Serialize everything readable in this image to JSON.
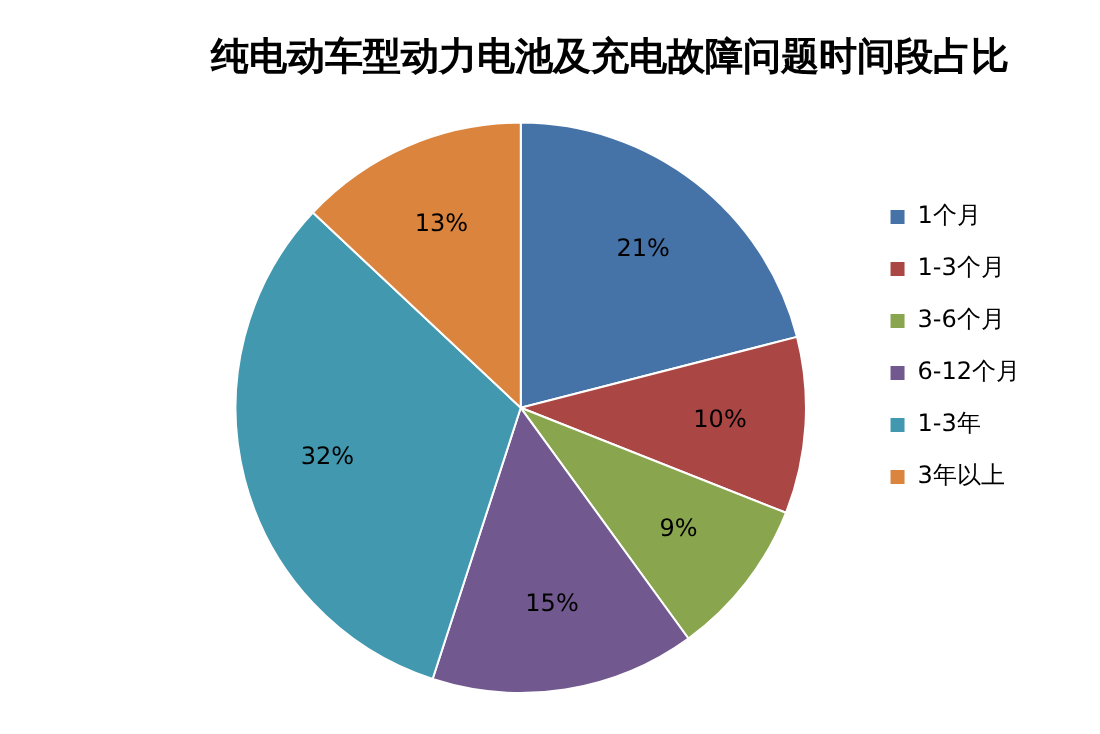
{
  "chart_data": {
    "type": "pie",
    "title": "纯电动车型动力电池及充电故障问题时间段占比",
    "categories": [
      "1个月",
      "1-3个月",
      "3-6个月",
      "6-12个月",
      "1-3年",
      "3年以上"
    ],
    "values": [
      21,
      10,
      9,
      15,
      32,
      13
    ],
    "colors": [
      "#4572a7",
      "#aa4643",
      "#89a54e",
      "#71588f",
      "#4198af",
      "#db843d"
    ],
    "value_labels": [
      "21%",
      "10%",
      "9%",
      "15%",
      "32%",
      "13%"
    ],
    "legend": "right"
  }
}
